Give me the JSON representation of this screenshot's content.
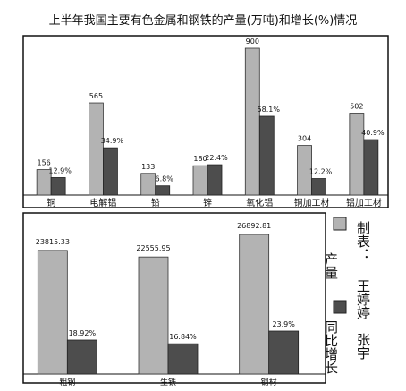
{
  "title": "上半年我国主要有色金属和钢铁的产量(万吨)和增长(%)情况",
  "legend": {
    "output_label": "产量",
    "growth_label": "同比增长"
  },
  "credit": {
    "prefix": "制表：",
    "author1": "王婷婷",
    "author2": "张宇"
  },
  "colors": {
    "output": "#b3b3b3",
    "growth": "#4d4d4d",
    "border": "#111111"
  },
  "chart_data": [
    {
      "type": "bar",
      "categories": [
        "铜",
        "电解铝",
        "铅",
        "锌",
        "氧化铝",
        "铜加工材",
        "铝加工材"
      ],
      "series": [
        {
          "name": "产量",
          "values": [
            156,
            565,
            133,
            180,
            900,
            304,
            502
          ],
          "labels": [
            "156",
            "565",
            "133",
            "180",
            "900",
            "304",
            "502"
          ]
        },
        {
          "name": "同比增长",
          "values": [
            12.9,
            34.9,
            6.8,
            22.4,
            58.1,
            12.2,
            40.9
          ],
          "labels": [
            "12.9%",
            "34.9%",
            "6.8%",
            "22.4%",
            "58.1%",
            "12.2%",
            "40.9%"
          ]
        }
      ]
    },
    {
      "type": "bar",
      "categories": [
        "粗钢",
        "生铁",
        "钢材"
      ],
      "series": [
        {
          "name": "产量",
          "values": [
            23815.33,
            22555.95,
            26892.81
          ],
          "labels": [
            "23815.33",
            "22555.95",
            "26892.81"
          ]
        },
        {
          "name": "同比增长",
          "values": [
            18.92,
            16.84,
            23.9
          ],
          "labels": [
            "18.92%",
            "16.84%",
            "23.9%"
          ]
        }
      ]
    }
  ]
}
